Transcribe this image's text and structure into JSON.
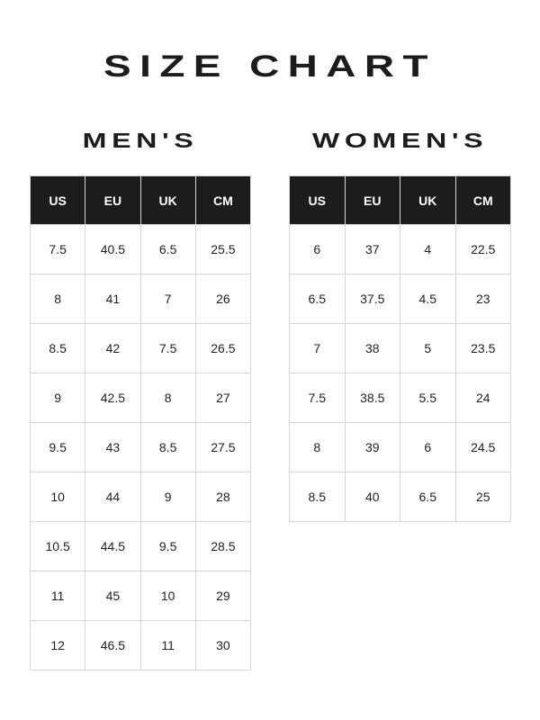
{
  "title": "SIZE CHART",
  "mens": {
    "heading": "MEN'S",
    "columns": [
      "US",
      "EU",
      "UK",
      "CM"
    ],
    "rows": [
      [
        "7.5",
        "40.5",
        "6.5",
        "25.5"
      ],
      [
        "8",
        "41",
        "7",
        "26"
      ],
      [
        "8.5",
        "42",
        "7.5",
        "26.5"
      ],
      [
        "9",
        "42.5",
        "8",
        "27"
      ],
      [
        "9.5",
        "43",
        "8.5",
        "27.5"
      ],
      [
        "10",
        "44",
        "9",
        "28"
      ],
      [
        "10.5",
        "44.5",
        "9.5",
        "28.5"
      ],
      [
        "11",
        "45",
        "10",
        "29"
      ],
      [
        "12",
        "46.5",
        "11",
        "30"
      ]
    ]
  },
  "womens": {
    "heading": "WOMEN'S",
    "columns": [
      "US",
      "EU",
      "UK",
      "CM"
    ],
    "rows": [
      [
        "6",
        "37",
        "4",
        "22.5"
      ],
      [
        "6.5",
        "37.5",
        "4.5",
        "23"
      ],
      [
        "7",
        "38",
        "5",
        "23.5"
      ],
      [
        "7.5",
        "38.5",
        "5.5",
        "24"
      ],
      [
        "8",
        "39",
        "6",
        "24.5"
      ],
      [
        "8.5",
        "40",
        "6.5",
        "25"
      ]
    ]
  },
  "colors": {
    "header_bg": "#1c1c1c",
    "header_text": "#ffffff",
    "border": "#d6d6d6"
  }
}
